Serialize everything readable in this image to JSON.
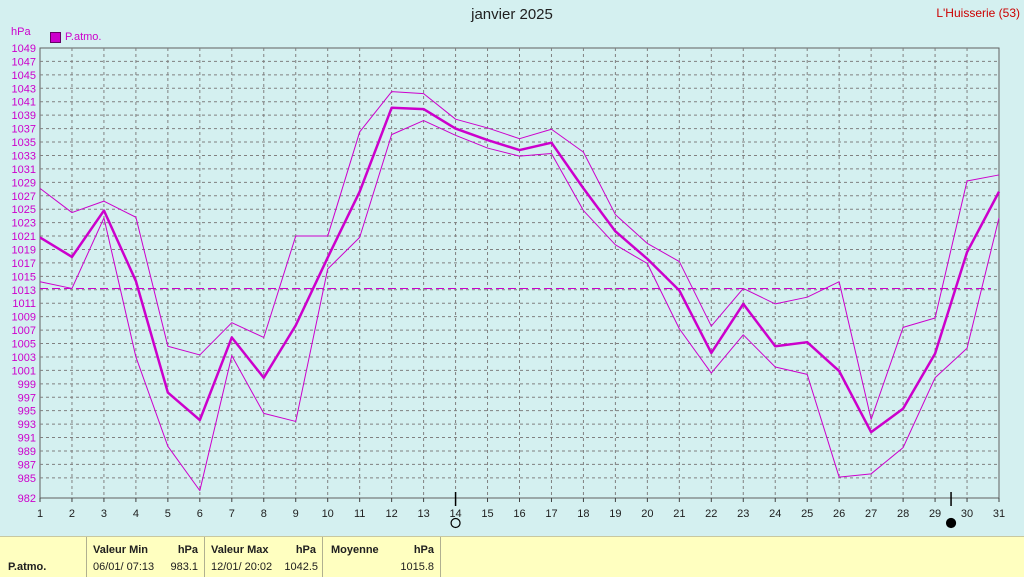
{
  "title": "janvier 2025",
  "station": "L'Huisserie (53)",
  "unit": "hPa",
  "legend_label": "P.atmo.",
  "colors": {
    "series": "#cc00cc",
    "grid": "#808080",
    "background": "#d4f0f0",
    "footer": "#ffffc0"
  },
  "moon_icons": [
    {
      "day": 14,
      "icon": "full-moon-icon"
    },
    {
      "day": 29.5,
      "icon": "new-moon-icon"
    }
  ],
  "footer": {
    "row_label": "P.atmo.",
    "min": {
      "header": "Valeur Min",
      "unit": "hPa",
      "date": "06/01/  07:13",
      "value": "983.1"
    },
    "max": {
      "header": "Valeur Max",
      "unit": "hPa",
      "date": "12/01/  20:02",
      "value": "1042.5"
    },
    "mean": {
      "header": "Moyenne",
      "unit": "hPa",
      "value": "1015.8"
    }
  },
  "chart_data": {
    "type": "line",
    "x": [
      1,
      2,
      3,
      4,
      5,
      6,
      7,
      8,
      9,
      10,
      11,
      12,
      13,
      14,
      15,
      16,
      17,
      18,
      19,
      20,
      21,
      22,
      23,
      24,
      25,
      26,
      27,
      28,
      29,
      30,
      31
    ],
    "xlim": [
      1,
      31
    ],
    "ylim": [
      982,
      1049
    ],
    "y_ticks": [
      982,
      985,
      987,
      989,
      991,
      993,
      995,
      997,
      999,
      1001,
      1003,
      1005,
      1007,
      1009,
      1011,
      1013,
      1015,
      1017,
      1019,
      1021,
      1023,
      1025,
      1027,
      1029,
      1031,
      1033,
      1035,
      1037,
      1039,
      1041,
      1043,
      1045,
      1047,
      1049
    ],
    "grid": true,
    "mean_line": 1013.2,
    "series": [
      {
        "role": "max",
        "values": [
          1028.1,
          1024.5,
          1026.2,
          1023.8,
          1004.6,
          1003.3,
          1008.1,
          1005.9,
          1021.0,
          1021.0,
          1036.5,
          1042.5,
          1042.2,
          1038.4,
          1037.1,
          1035.5,
          1036.9,
          1033.5,
          1024.2,
          1019.9,
          1017.2,
          1007.6,
          1013.2,
          1010.9,
          1011.9,
          1014.2,
          993.7,
          1007.4,
          1008.8,
          1029.2,
          1030.1
        ]
      },
      {
        "role": "mean",
        "values": [
          1020.8,
          1017.9,
          1024.8,
          1014.3,
          997.7,
          993.6,
          1005.9,
          999.9,
          1007.7,
          1017.8,
          1027.6,
          1040.1,
          1039.9,
          1037.0,
          1035.3,
          1033.8,
          1034.9,
          1028.1,
          1021.7,
          1017.6,
          1012.9,
          1003.6,
          1010.9,
          1004.6,
          1005.2,
          1000.9,
          991.8,
          995.3,
          1003.5,
          1018.6,
          1027.6
        ]
      },
      {
        "role": "min",
        "values": [
          1014.2,
          1013.2,
          1023.7,
          1003.0,
          989.7,
          983.1,
          1003.2,
          994.6,
          993.4,
          1016.1,
          1020.8,
          1036.1,
          1038.2,
          1036.0,
          1034.1,
          1032.9,
          1033.3,
          1024.8,
          1019.7,
          1016.9,
          1007.2,
          1000.6,
          1006.3,
          1001.5,
          1000.4,
          985.1,
          985.6,
          989.5,
          999.9,
          1004.3,
          1023.7
        ]
      }
    ]
  }
}
